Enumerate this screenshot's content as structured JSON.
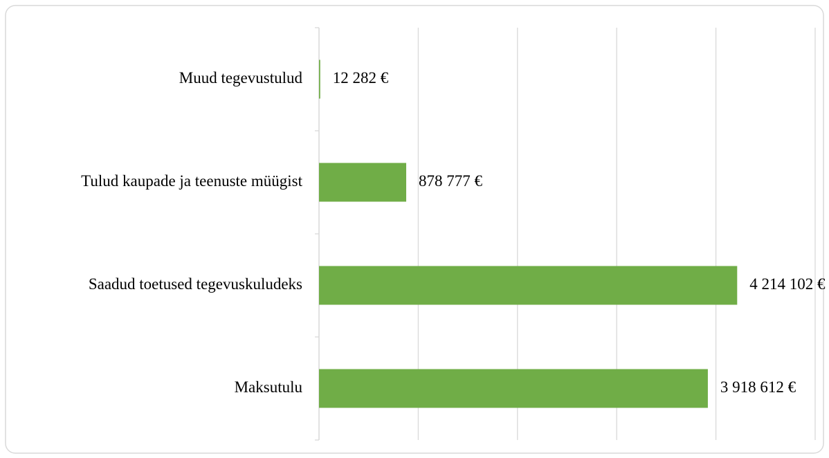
{
  "chart_data": {
    "type": "barh",
    "categories": [
      "Muud tegevustulud",
      "Tulud kaupade ja teenuste müügist",
      "Saadud toetused tegevuskuludeks",
      "Maksutulu"
    ],
    "values": [
      12282,
      878777,
      4214102,
      3918612
    ],
    "value_labels": [
      "12 282 €",
      "878 777 €",
      "4 214 102 €",
      "3 918 612 €"
    ],
    "color": "#70ad47",
    "xlim": [
      0,
      5000000
    ],
    "xticks": [
      0,
      1000000,
      2000000,
      3000000,
      4000000,
      5000000
    ],
    "grid": true
  }
}
